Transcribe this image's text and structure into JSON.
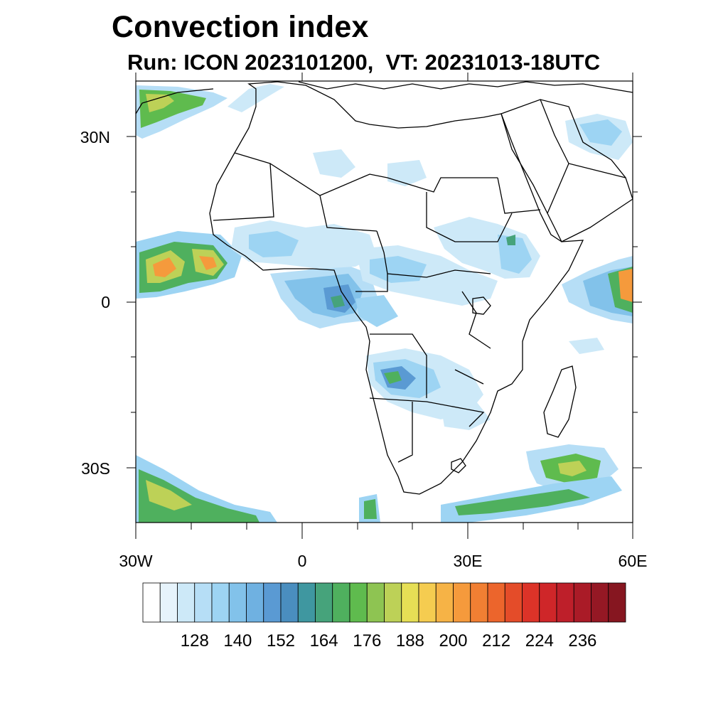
{
  "header": {
    "title": "Convection index",
    "subtitle": "Run: ICON 2023101200,  VT: 20231013-18UTC"
  },
  "axes": {
    "lat_labels": [
      "30N",
      "0",
      "30S"
    ],
    "lon_labels": [
      "30W",
      "0",
      "30E",
      "60E"
    ]
  },
  "colorbar": {
    "labels": [
      "128",
      "140",
      "152",
      "164",
      "176",
      "188",
      "200",
      "212",
      "224",
      "236"
    ],
    "colors": [
      "#ffffff",
      "#e6f3fb",
      "#cde9f8",
      "#b6def6",
      "#9dd4f3",
      "#82c2ea",
      "#6fb1e1",
      "#5a9ad3",
      "#4a8ebf",
      "#3f97a0",
      "#46a37b",
      "#4fb05e",
      "#5fbb4e",
      "#8ec452",
      "#bdd157",
      "#e6df55",
      "#f5cc50",
      "#f6b346",
      "#f59a3c",
      "#f17f33",
      "#ec652c",
      "#e44c29",
      "#dc3328",
      "#cf2629",
      "#be1f2a",
      "#aa1b27",
      "#951824",
      "#861620"
    ]
  },
  "icons": {
    "map": "africa-map"
  },
  "map_extent": {
    "lon_min": -30,
    "lon_max": 60,
    "lat_min": -40,
    "lat_max": 40
  }
}
